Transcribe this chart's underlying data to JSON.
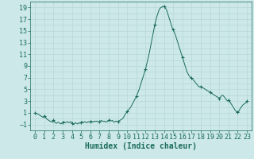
{
  "title": "",
  "xlabel": "Humidex (Indice chaleur)",
  "ylabel": "",
  "background_color": "#cce8e8",
  "plot_bg_color": "#cce8e8",
  "grid_color": "#b8d8d8",
  "line_color": "#1a6b5a",
  "marker_color": "#1a6b5a",
  "xlim": [
    -0.5,
    23.5
  ],
  "ylim": [
    -2.0,
    20.0
  ],
  "yticks": [
    -1,
    1,
    3,
    5,
    7,
    9,
    11,
    13,
    15,
    17,
    19
  ],
  "xticks": [
    0,
    1,
    2,
    3,
    4,
    5,
    6,
    7,
    8,
    9,
    10,
    11,
    12,
    13,
    14,
    15,
    16,
    17,
    18,
    19,
    20,
    21,
    22,
    23
  ],
  "x_data": [
    0.0,
    0.1,
    0.2,
    0.3,
    0.4,
    0.5,
    0.6,
    0.7,
    0.8,
    0.9,
    1.0,
    1.1,
    1.2,
    1.3,
    1.4,
    1.5,
    1.6,
    1.7,
    1.8,
    1.9,
    2.0,
    2.1,
    2.2,
    2.3,
    2.4,
    2.5,
    2.6,
    2.7,
    2.8,
    2.9,
    3.0,
    3.1,
    3.2,
    3.3,
    3.4,
    3.5,
    3.6,
    3.7,
    3.8,
    3.9,
    4.0,
    4.1,
    4.2,
    4.3,
    4.4,
    4.5,
    4.6,
    4.7,
    4.8,
    4.9,
    5.0,
    5.1,
    5.2,
    5.3,
    5.4,
    5.5,
    5.6,
    5.7,
    5.8,
    5.9,
    6.0,
    6.1,
    6.2,
    6.3,
    6.4,
    6.5,
    6.6,
    6.7,
    6.8,
    6.9,
    7.0,
    7.1,
    7.2,
    7.3,
    7.4,
    7.5,
    7.6,
    7.7,
    7.8,
    7.9,
    8.0,
    8.1,
    8.2,
    8.3,
    8.4,
    8.5,
    8.6,
    8.7,
    8.8,
    8.9,
    9.0,
    9.1,
    9.2,
    9.3,
    9.4,
    9.5,
    9.6,
    9.7,
    9.8,
    9.9,
    10.0,
    10.1,
    10.2,
    10.3,
    10.4,
    10.5,
    10.6,
    10.7,
    10.8,
    10.9,
    11.0,
    11.1,
    11.2,
    11.3,
    11.4,
    11.5,
    11.6,
    11.7,
    11.8,
    11.9,
    12.0,
    12.1,
    12.2,
    12.3,
    12.4,
    12.5,
    12.6,
    12.7,
    12.8,
    12.9,
    13.0,
    13.1,
    13.2,
    13.3,
    13.4,
    13.5,
    13.6,
    13.7,
    13.8,
    13.9,
    14.0,
    14.1,
    14.2,
    14.3,
    14.4,
    14.5,
    14.6,
    14.7,
    14.8,
    14.9,
    15.0,
    15.1,
    15.2,
    15.3,
    15.4,
    15.5,
    15.6,
    15.7,
    15.8,
    15.9,
    16.0,
    16.1,
    16.2,
    16.3,
    16.4,
    16.5,
    16.6,
    16.7,
    16.8,
    16.9,
    17.0,
    17.1,
    17.2,
    17.3,
    17.4,
    17.5,
    17.6,
    17.7,
    17.8,
    17.9,
    18.0,
    18.1,
    18.2,
    18.3,
    18.4,
    18.5,
    18.6,
    18.7,
    18.8,
    18.9,
    19.0,
    19.1,
    19.2,
    19.3,
    19.4,
    19.5,
    19.6,
    19.7,
    19.8,
    19.9,
    20.0,
    20.1,
    20.2,
    20.3,
    20.4,
    20.5,
    20.6,
    20.7,
    20.8,
    20.9,
    21.0,
    21.1,
    21.2,
    21.3,
    21.4,
    21.5,
    21.6,
    21.7,
    21.8,
    21.9,
    22.0,
    22.1,
    22.2,
    22.3,
    22.4,
    22.5,
    22.6,
    22.7,
    22.8,
    22.9,
    23.0
  ],
  "y_data": [
    1.0,
    0.9,
    0.85,
    0.8,
    0.7,
    0.6,
    0.5,
    0.4,
    0.3,
    0.2,
    0.5,
    0.3,
    0.1,
    -0.1,
    -0.2,
    -0.3,
    -0.4,
    -0.5,
    -0.5,
    -0.6,
    -0.3,
    -0.5,
    -0.7,
    -0.8,
    -0.7,
    -0.6,
    -0.7,
    -0.8,
    -0.9,
    -0.8,
    -0.7,
    -0.5,
    -0.6,
    -0.7,
    -0.6,
    -0.5,
    -0.6,
    -0.7,
    -0.6,
    -0.5,
    -0.8,
    -0.9,
    -1.0,
    -0.8,
    -0.7,
    -0.8,
    -0.9,
    -0.8,
    -0.7,
    -0.8,
    -0.6,
    -0.5,
    -0.7,
    -0.6,
    -0.5,
    -0.6,
    -0.7,
    -0.6,
    -0.5,
    -0.6,
    -0.5,
    -0.4,
    -0.5,
    -0.6,
    -0.5,
    -0.4,
    -0.5,
    -0.4,
    -0.5,
    -0.6,
    -0.5,
    -0.4,
    -0.3,
    -0.4,
    -0.5,
    -0.4,
    -0.5,
    -0.6,
    -0.5,
    -0.4,
    -0.3,
    -0.2,
    -0.3,
    -0.4,
    -0.3,
    -0.5,
    -0.6,
    -0.5,
    -0.4,
    -0.5,
    -0.5,
    -0.4,
    -0.3,
    -0.2,
    -0.1,
    0.0,
    0.2,
    0.5,
    0.8,
    1.0,
    1.2,
    1.4,
    1.6,
    1.8,
    2.0,
    2.3,
    2.6,
    2.9,
    3.2,
    3.5,
    3.8,
    4.2,
    4.6,
    5.0,
    5.5,
    6.0,
    6.5,
    7.0,
    7.5,
    8.0,
    8.5,
    9.2,
    9.8,
    10.5,
    11.2,
    12.0,
    12.8,
    13.6,
    14.4,
    15.2,
    16.0,
    16.7,
    17.3,
    17.8,
    18.3,
    18.7,
    18.9,
    19.0,
    19.1,
    19.2,
    19.15,
    19.0,
    18.8,
    18.5,
    18.0,
    17.5,
    17.0,
    16.5,
    16.0,
    15.5,
    15.2,
    14.8,
    14.5,
    14.0,
    13.5,
    13.0,
    12.5,
    12.0,
    11.5,
    11.0,
    10.5,
    10.0,
    9.5,
    9.0,
    8.5,
    8.0,
    7.7,
    7.4,
    7.2,
    7.0,
    7.0,
    6.8,
    6.6,
    6.4,
    6.2,
    6.0,
    5.8,
    5.6,
    5.5,
    5.4,
    5.5,
    5.4,
    5.3,
    5.2,
    5.1,
    5.0,
    4.9,
    4.8,
    4.7,
    4.6,
    4.5,
    4.4,
    4.3,
    4.2,
    4.1,
    4.0,
    3.9,
    3.8,
    3.7,
    3.6,
    3.5,
    3.6,
    3.8,
    4.0,
    4.0,
    3.8,
    3.6,
    3.4,
    3.2,
    3.0,
    3.2,
    3.0,
    2.8,
    2.5,
    2.3,
    2.0,
    1.8,
    1.5,
    1.3,
    1.2,
    1.1,
    1.2,
    1.5,
    1.8,
    2.0,
    2.2,
    2.4,
    2.5,
    2.6,
    2.7,
    3.0
  ],
  "marker_x": [
    0,
    1,
    2,
    3,
    4,
    5,
    6,
    7,
    8,
    9,
    10,
    11,
    12,
    13,
    14,
    15,
    16,
    17,
    18,
    19,
    20,
    21,
    22,
    23
  ],
  "marker_y": [
    1.0,
    0.5,
    -0.3,
    -0.7,
    -0.8,
    -0.6,
    -0.5,
    -0.5,
    -0.3,
    -0.5,
    1.2,
    3.8,
    8.5,
    16.0,
    19.15,
    15.2,
    10.5,
    7.0,
    5.5,
    4.5,
    3.5,
    3.2,
    1.1,
    3.0
  ],
  "tick_fontsize": 6,
  "label_fontsize": 7
}
